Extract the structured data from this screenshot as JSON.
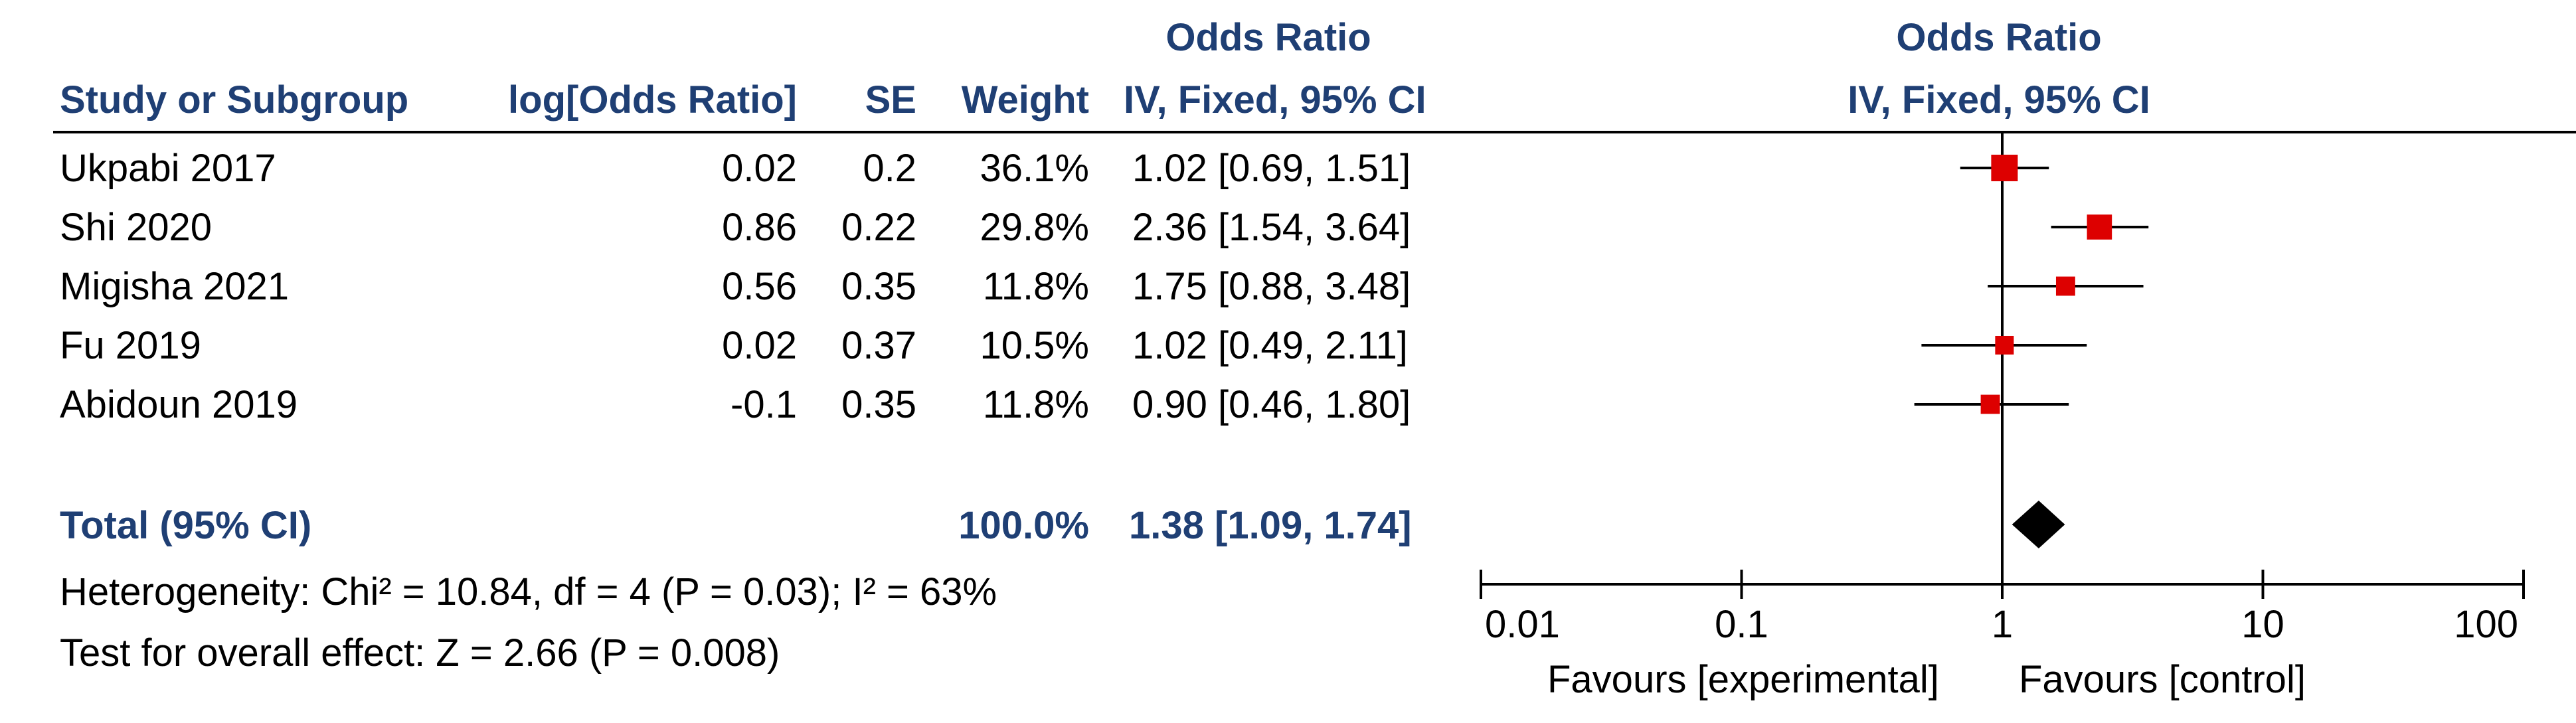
{
  "header": {
    "col_group_label": "Odds Ratio",
    "col_group_method": "IV, Fixed, 95% CI",
    "plot_group_label": "Odds Ratio",
    "plot_group_method": "IV, Fixed, 95% CI",
    "study_col": "Study or Subgroup",
    "log_or_col": "log[Odds Ratio]",
    "se_col": "SE",
    "weight_col": "Weight"
  },
  "studies": [
    {
      "name": "Ukpabi 2017",
      "log_or": "0.02",
      "se": "0.2",
      "weight": "36.1%",
      "ci_text": "1.02 [0.69, 1.51]"
    },
    {
      "name": "Shi 2020",
      "log_or": "0.86",
      "se": "0.22",
      "weight": "29.8%",
      "ci_text": "2.36 [1.54, 3.64]"
    },
    {
      "name": "Migisha 2021",
      "log_or": "0.56",
      "se": "0.35",
      "weight": "11.8%",
      "ci_text": "1.75 [0.88, 3.48]"
    },
    {
      "name": "Fu 2019",
      "log_or": "0.02",
      "se": "0.37",
      "weight": "10.5%",
      "ci_text": "1.02 [0.49, 2.11]"
    },
    {
      "name": "Abidoun 2019",
      "log_or": "-0.1",
      "se": "0.35",
      "weight": "11.8%",
      "ci_text": "0.90 [0.46, 1.80]"
    }
  ],
  "total": {
    "label": "Total (95% CI)",
    "weight": "100.0%",
    "ci_text": "1.38 [1.09, 1.74]"
  },
  "heterogeneity": "Heterogeneity: Chi² = 10.84, df = 4 (P = 0.03); I² = 63%",
  "overall_effect": "Test for overall effect: Z = 2.66 (P = 0.008)",
  "axis": {
    "tick_labels": [
      "0.01",
      "0.1",
      "1",
      "10",
      "100"
    ],
    "favours_left": "Favours [experimental]",
    "favours_right": "Favours [control]"
  },
  "colors": {
    "header_text": "#1f3f74",
    "study_marker": "#dd0000",
    "total_diamond": "#000000",
    "text": "#000000"
  },
  "chart_data": {
    "type": "forest",
    "scale": "log",
    "xlim": [
      0.01,
      100
    ],
    "ticks": [
      0.01,
      0.1,
      1,
      10,
      100
    ],
    "null_line": 1,
    "studies": [
      {
        "name": "Ukpabi 2017",
        "or": 1.02,
        "lower": 0.69,
        "upper": 1.51,
        "weight": 36.1
      },
      {
        "name": "Shi 2020",
        "or": 2.36,
        "lower": 1.54,
        "upper": 3.64,
        "weight": 29.8
      },
      {
        "name": "Migisha 2021",
        "or": 1.75,
        "lower": 0.88,
        "upper": 3.48,
        "weight": 11.8
      },
      {
        "name": "Fu 2019",
        "or": 1.02,
        "lower": 0.49,
        "upper": 2.11,
        "weight": 10.5
      },
      {
        "name": "Abidoun 2019",
        "or": 0.9,
        "lower": 0.46,
        "upper": 1.8,
        "weight": 11.8
      }
    ],
    "pooled": {
      "or": 1.38,
      "lower": 1.09,
      "upper": 1.74,
      "weight": 100.0
    }
  }
}
